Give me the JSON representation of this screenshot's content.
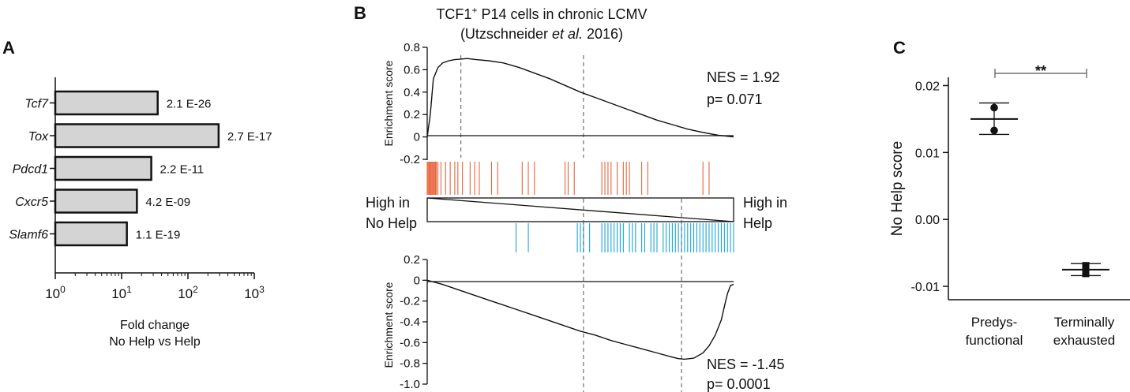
{
  "chart_data": [
    {
      "panel": "A",
      "type": "bar",
      "orientation": "horizontal",
      "xscale": "log",
      "categories": [
        "Tcf7",
        "Tox",
        "Pdcd1",
        "Cxcr5",
        "Slamf6"
      ],
      "values": [
        35,
        290,
        28,
        17,
        12
      ],
      "value_labels": [
        "2.1 E-26",
        "2.7 E-17",
        "2.2 E-11",
        "4.2 E-09",
        "1.1 E-19"
      ],
      "xlim": [
        1,
        1000
      ],
      "xticks": [
        1,
        10,
        100,
        1000
      ],
      "xtick_base": [
        "10",
        "10",
        "10",
        "10"
      ],
      "xtick_exp": [
        "0",
        "1",
        "2",
        "3"
      ],
      "xlabel": [
        "Fold change",
        "No Help vs Help"
      ],
      "bar_color": "#d4d4d4"
    },
    {
      "panel": "B",
      "type": "line",
      "title_line1_main": "TCF1",
      "title_line1_sup": "+",
      "title_line1_rest": " P14 cells in chronic LCMV",
      "title_line2_pre": "(Utzschneider ",
      "title_line2_ital": "et al.",
      "title_line2_post": " 2016)",
      "top": {
        "ylabel": "Enrichment score",
        "ylim": [
          -0.2,
          0.8
        ],
        "yticks": [
          "0.8",
          "0.6",
          "0.4",
          "0.2",
          "0",
          "-0.2"
        ],
        "ytick_values": [
          0.8,
          0.6,
          0.4,
          0.2,
          0,
          -0.2
        ],
        "x": [
          0,
          0.01,
          0.02,
          0.035,
          0.05,
          0.07,
          0.09,
          0.11,
          0.13,
          0.16,
          0.2,
          0.25,
          0.3,
          0.35,
          0.4,
          0.45,
          0.5,
          0.55,
          0.6,
          0.65,
          0.7,
          0.75,
          0.8,
          0.85,
          0.9,
          0.95,
          1.0
        ],
        "y": [
          0,
          0.2,
          0.52,
          0.62,
          0.66,
          0.68,
          0.69,
          0.695,
          0.7,
          0.69,
          0.68,
          0.66,
          0.62,
          0.57,
          0.52,
          0.46,
          0.4,
          0.35,
          0.3,
          0.25,
          0.2,
          0.15,
          0.11,
          0.07,
          0.04,
          0.015,
          0
        ],
        "nes": "NES = 1.92",
        "p": "p= 0.071",
        "dashed_x": [
          0.11,
          0.51
        ]
      },
      "bottom": {
        "ylabel": "Enrichment score",
        "ylim": [
          -1.0,
          0.2
        ],
        "yticks": [
          "0.2",
          "0",
          "-0.2",
          "-0.4",
          "-0.6",
          "-0.8",
          "-1.0"
        ],
        "ytick_values": [
          0.2,
          0,
          -0.2,
          -0.4,
          -0.6,
          -0.8,
          -1.0
        ],
        "x": [
          0,
          0.05,
          0.1,
          0.15,
          0.2,
          0.25,
          0.3,
          0.35,
          0.4,
          0.45,
          0.5,
          0.55,
          0.6,
          0.65,
          0.7,
          0.75,
          0.8,
          0.82,
          0.84,
          0.87,
          0.9,
          0.92,
          0.94,
          0.96,
          0.97,
          0.98,
          0.99,
          1.0
        ],
        "y": [
          0,
          -0.04,
          -0.09,
          -0.14,
          -0.19,
          -0.24,
          -0.29,
          -0.34,
          -0.39,
          -0.44,
          -0.49,
          -0.53,
          -0.58,
          -0.62,
          -0.66,
          -0.7,
          -0.74,
          -0.755,
          -0.76,
          -0.75,
          -0.7,
          -0.63,
          -0.53,
          -0.38,
          -0.25,
          -0.13,
          -0.05,
          -0.04
        ],
        "nes": "NES = -1.45",
        "p": "p= 0.0001",
        "dashed_x": [
          0.51,
          0.83
        ]
      },
      "hits_red": [
        0.0,
        0.003,
        0.006,
        0.009,
        0.012,
        0.015,
        0.018,
        0.021,
        0.024,
        0.027,
        0.03,
        0.035,
        0.045,
        0.06,
        0.075,
        0.09,
        0.1,
        0.115,
        0.14,
        0.155,
        0.17,
        0.21,
        0.23,
        0.31,
        0.33,
        0.35,
        0.45,
        0.46,
        0.48,
        0.57,
        0.58,
        0.59,
        0.6,
        0.62,
        0.64,
        0.65,
        0.66,
        0.7,
        0.72,
        0.9,
        0.92
      ],
      "hits_blue": [
        0.29,
        0.33,
        0.49,
        0.5,
        0.51,
        0.53,
        0.57,
        0.58,
        0.59,
        0.6,
        0.61,
        0.62,
        0.63,
        0.64,
        0.66,
        0.67,
        0.68,
        0.7,
        0.71,
        0.73,
        0.74,
        0.75,
        0.77,
        0.78,
        0.79,
        0.8,
        0.81,
        0.82,
        0.83,
        0.84,
        0.85,
        0.86,
        0.87,
        0.88,
        0.89,
        0.9,
        0.91,
        0.92,
        0.93,
        0.94,
        0.95,
        0.96,
        0.97,
        0.98,
        0.99,
        1.0
      ],
      "red_color": "#e8643c",
      "blue_color": "#1aa6d6",
      "left_label": [
        "High in",
        "No Help"
      ],
      "right_label": [
        "High in",
        "Help"
      ]
    },
    {
      "panel": "C",
      "type": "scatter",
      "ylabel": "No Help score",
      "ylim": [
        -0.012,
        0.021
      ],
      "yticks": [
        "0.02",
        "0.01",
        "0.00",
        "-0.01"
      ],
      "ytick_values": [
        0.02,
        0.01,
        0.0,
        -0.01
      ],
      "categories": [
        "Predys-\nfunctional",
        "Terminally\nexhausted"
      ],
      "category_lines": [
        [
          "Predys-",
          "functional"
        ],
        [
          "Terminally",
          "exhausted"
        ]
      ],
      "series": [
        {
          "name": "Predys-functional",
          "marker": "circle",
          "points": [
            0.0167,
            0.0133
          ],
          "mean": 0.015,
          "err_low": 0.0127,
          "err_high": 0.0174
        },
        {
          "name": "Terminally exhausted",
          "marker": "square",
          "points": [
            -0.0069,
            -0.0081
          ],
          "mean": -0.0075,
          "err_low": -0.0084,
          "err_high": -0.0066
        }
      ],
      "significance": "**"
    }
  ],
  "panels": {
    "a": "A",
    "b": "B",
    "c": "C"
  }
}
